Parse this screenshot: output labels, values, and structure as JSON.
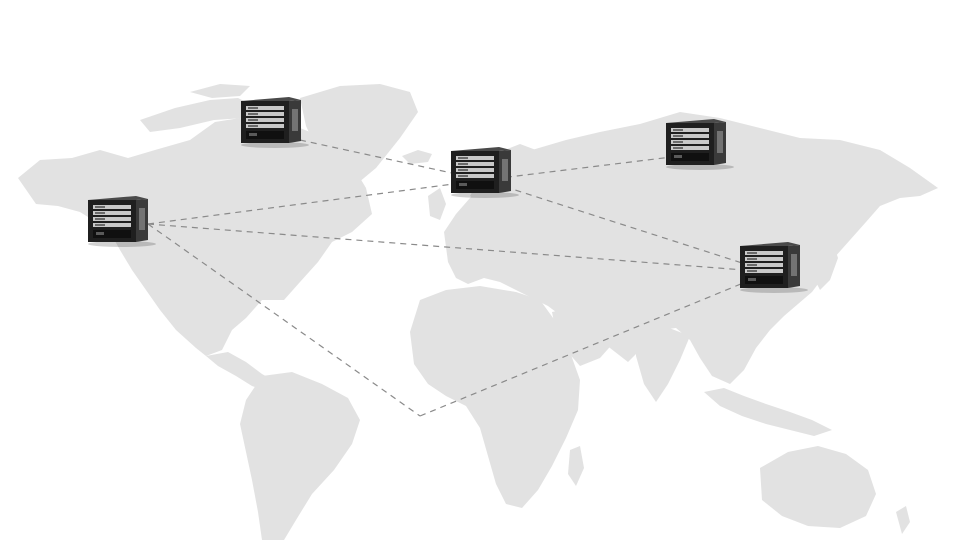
{
  "colors": {
    "background": "#ffffff",
    "land": "#e2e2e2",
    "link_line": "#8a8a8a",
    "server_body": "#1f1f1f",
    "server_side": "#3a3a3a",
    "server_panel": "#c9c9c9"
  },
  "icons": {
    "node": "server-rack-icon",
    "map": "world-map"
  },
  "nodes": [
    {
      "id": "north-america-west"
    },
    {
      "id": "north-america-north"
    },
    {
      "id": "europe"
    },
    {
      "id": "russia-east"
    },
    {
      "id": "east-asia"
    }
  ],
  "links": [
    {
      "from": "north-america-west",
      "to": "europe"
    },
    {
      "from": "north-america-west",
      "to": "east-asia"
    },
    {
      "from": "north-america-west",
      "to": "south-atlantic-junction"
    },
    {
      "from": "south-atlantic-junction",
      "to": "east-asia"
    },
    {
      "from": "north-america-north",
      "to": "europe"
    },
    {
      "from": "europe",
      "to": "russia-east"
    },
    {
      "from": "europe",
      "to": "east-asia"
    }
  ]
}
